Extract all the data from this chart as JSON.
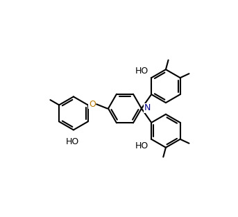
{
  "bg": "#ffffff",
  "lw": 1.5,
  "off": 0.11,
  "r": 0.85,
  "fw": 3.43,
  "fh": 3.13,
  "dpi": 100,
  "n_color": "#00008B",
  "o_color": "#b87800",
  "text_color": "#000000",
  "xlim": [
    -0.5,
    10.5
  ],
  "ylim": [
    -0.5,
    10.5
  ]
}
